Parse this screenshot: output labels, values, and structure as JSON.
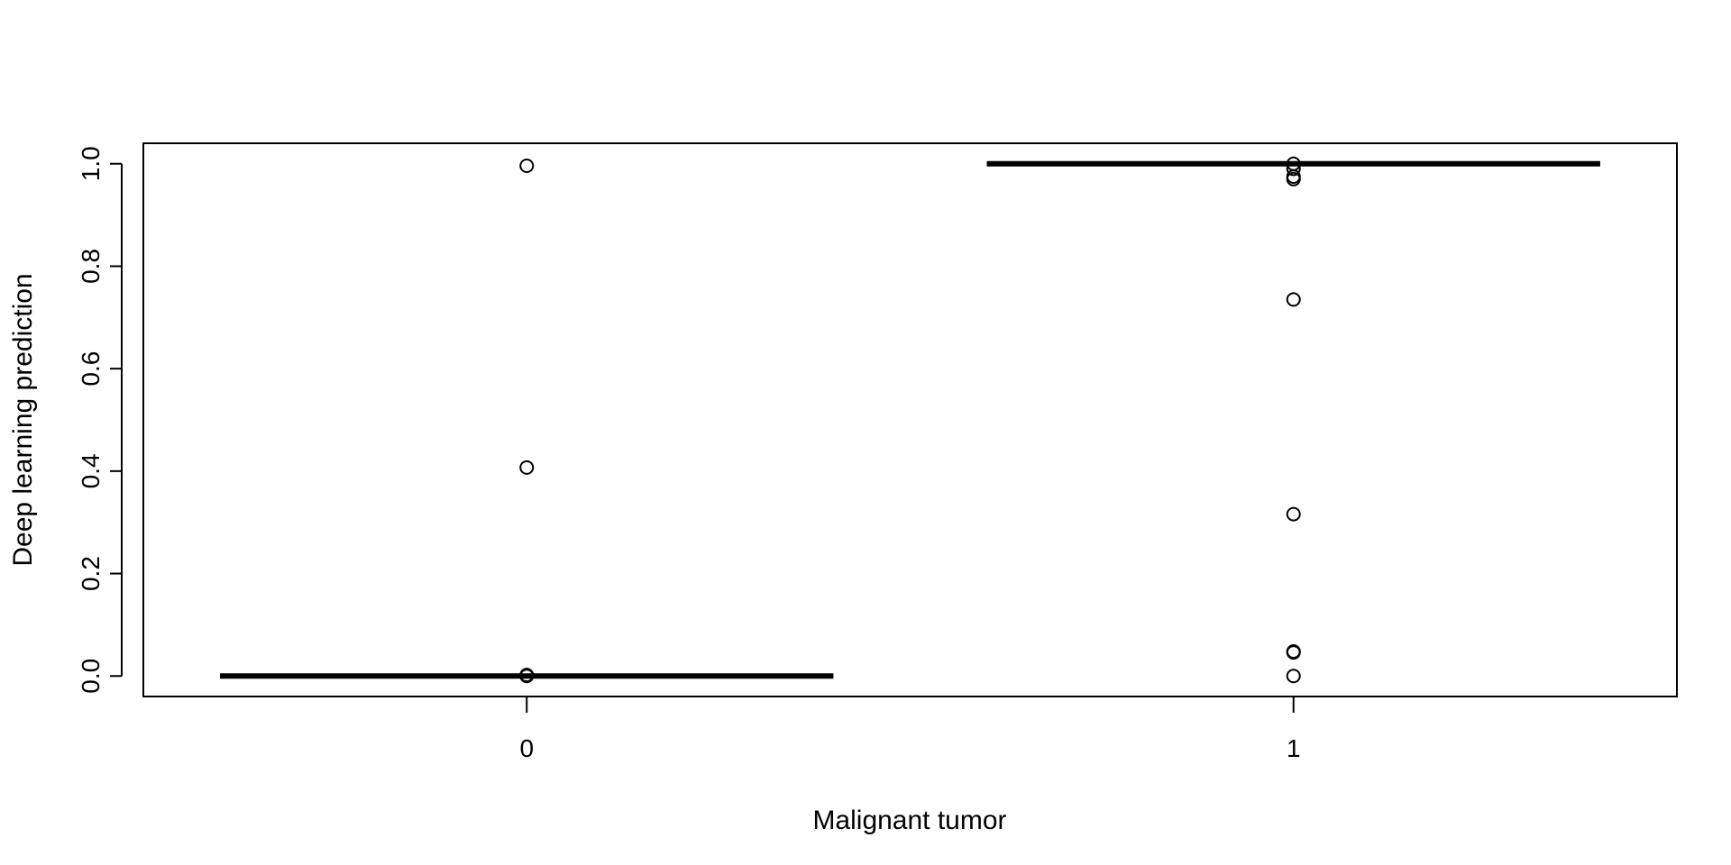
{
  "chart_data": {
    "type": "boxplot",
    "title": "",
    "xlabel": "Malignant tumor",
    "ylabel": "Deep learning prediction",
    "categories": [
      "0",
      "1"
    ],
    "ylim": [
      -0.04,
      1.04
    ],
    "yticks": [
      0.0,
      0.2,
      0.4,
      0.6,
      0.8,
      1.0
    ],
    "ytick_labels": [
      "0.0",
      "0.2",
      "0.4",
      "0.6",
      "0.8",
      "1.0"
    ],
    "grid": false,
    "legend": "none",
    "boxes": [
      {
        "category": "0",
        "median": 0.0,
        "q1": 0.0,
        "q3": 0.0,
        "whisker_low": 0.0,
        "whisker_high": 0.0,
        "outliers": [
          0.996,
          0.407,
          0.002,
          0.001,
          0.0
        ]
      },
      {
        "category": "1",
        "median": 1.0,
        "q1": 1.0,
        "q3": 1.0,
        "whisker_low": 1.0,
        "whisker_high": 1.0,
        "outliers": [
          1.0,
          0.99,
          0.975,
          0.97,
          0.735,
          0.316,
          0.048,
          0.046,
          0.0
        ]
      }
    ],
    "colors": {
      "stroke": "#000000",
      "background": "#ffffff"
    }
  }
}
